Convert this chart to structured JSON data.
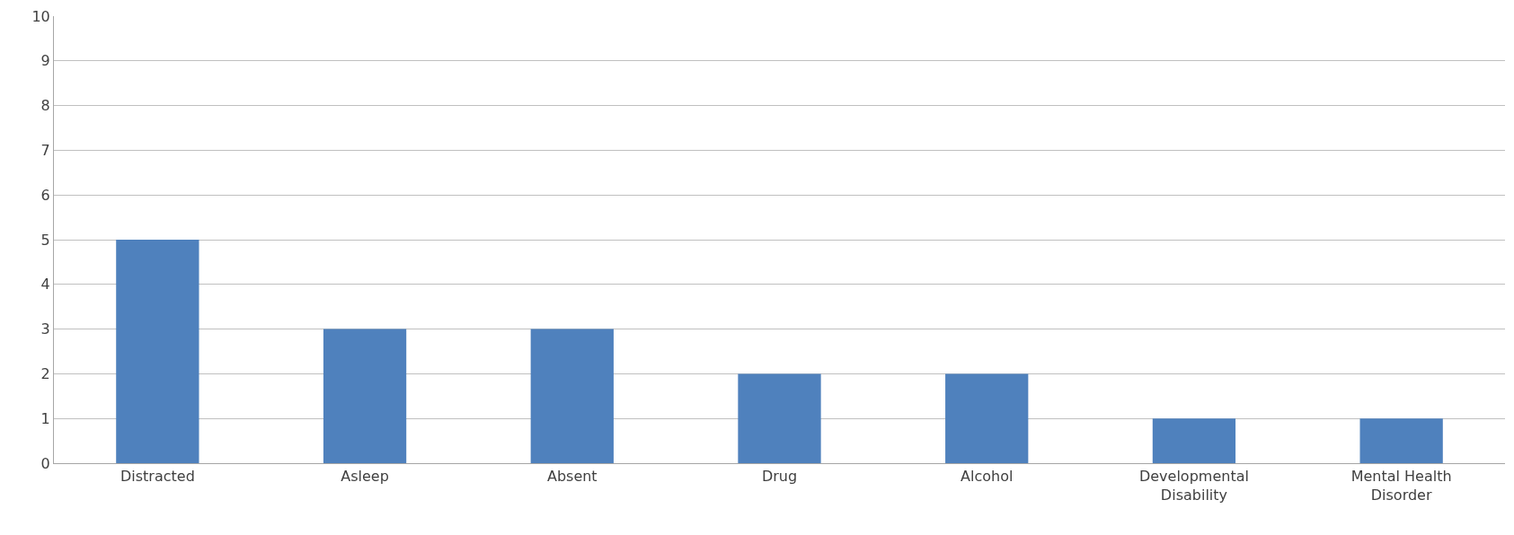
{
  "chart_data": {
    "type": "bar",
    "categories": [
      "Distracted",
      "Asleep",
      "Absent",
      "Drug",
      "Alcohol",
      "Developmental Disability",
      "Mental Health Disorder"
    ],
    "values": [
      5,
      3,
      3,
      2,
      2,
      1,
      1
    ],
    "color": "#4f81bd",
    "ylim": [
      0,
      10
    ],
    "yticks": [
      0,
      1,
      2,
      3,
      4,
      5,
      6,
      7,
      8,
      9,
      10
    ],
    "grid": "y"
  }
}
